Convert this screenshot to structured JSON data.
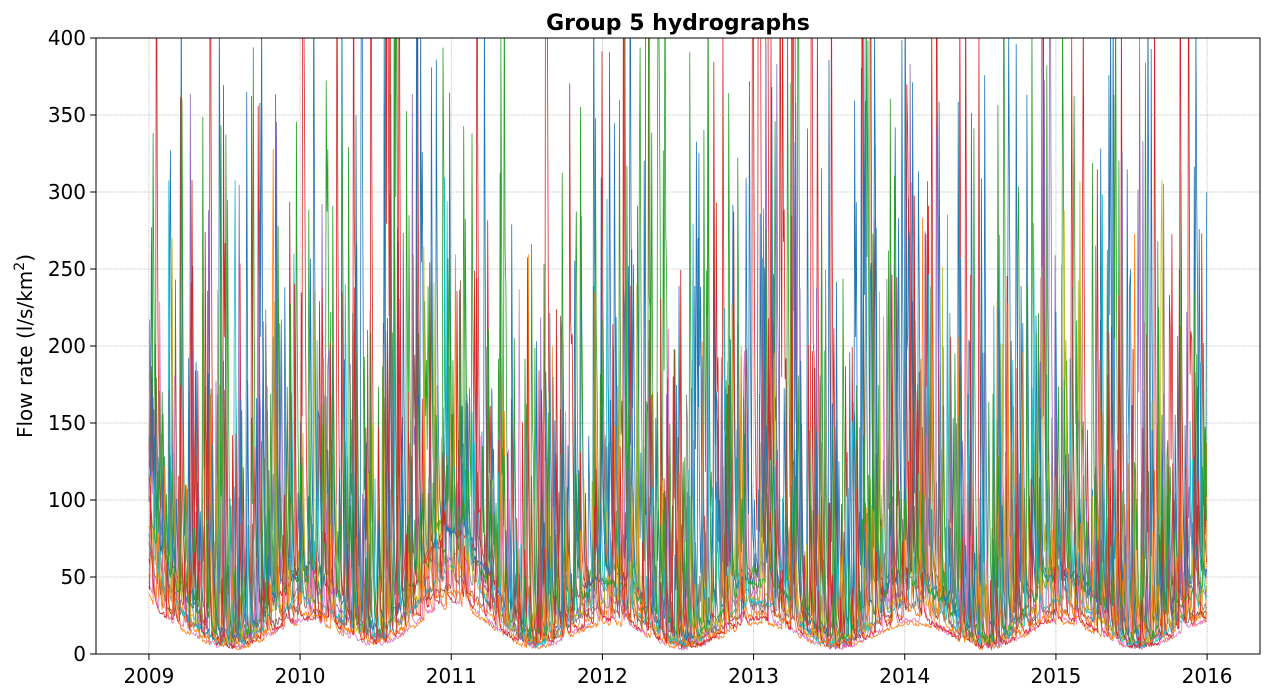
{
  "chart_data": {
    "type": "line",
    "title": "Group 5 hydrographs",
    "xlabel": "",
    "ylabel": "Flow rate (l/s/km²)",
    "ylabel_main": "Flow rate (l/s/km",
    "ylabel_sup": "2",
    "ylabel_end": ")",
    "xlim": [
      2008.65,
      2016.35
    ],
    "ylim": [
      0,
      400
    ],
    "x_ticks": [
      2009,
      2010,
      2011,
      2012,
      2013,
      2014,
      2015,
      2016
    ],
    "x_tick_labels": [
      "2009",
      "2010",
      "2011",
      "2012",
      "2013",
      "2014",
      "2015",
      "2016"
    ],
    "y_ticks": [
      0,
      50,
      100,
      150,
      200,
      250,
      300,
      350,
      400
    ],
    "y_tick_labels": [
      "0",
      "50",
      "100",
      "150",
      "200",
      "250",
      "300",
      "350",
      "400"
    ],
    "grid": true,
    "legend": "none",
    "data_start": 2009.0,
    "data_end": 2016.0,
    "line_width": 0.8,
    "series": [
      {
        "color": "#1f77b4",
        "base": 28,
        "seasonal_amp": 22,
        "baseflow_start": 70,
        "peak_scale": 90,
        "peak_rate": 26,
        "seed": 11
      },
      {
        "color": "#ff7f0e",
        "base": 12,
        "seasonal_amp": 8,
        "baseflow_start": 20,
        "peak_scale": 45,
        "peak_rate": 20,
        "seed": 23
      },
      {
        "color": "#2ca02c",
        "base": 36,
        "seasonal_amp": 20,
        "baseflow_start": 85,
        "peak_scale": 100,
        "peak_rate": 26,
        "seed": 37
      },
      {
        "color": "#d62728",
        "base": 30,
        "seasonal_amp": 24,
        "baseflow_start": 80,
        "peak_scale": 140,
        "peak_rate": 24,
        "seed": 41
      },
      {
        "color": "#9467bd",
        "base": 24,
        "seasonal_amp": 18,
        "baseflow_start": 60,
        "peak_scale": 80,
        "peak_rate": 20,
        "seed": 53
      },
      {
        "color": "#8c564b",
        "base": 18,
        "seasonal_amp": 10,
        "baseflow_start": 35,
        "peak_scale": 50,
        "peak_rate": 16,
        "seed": 67
      },
      {
        "color": "#e377c2",
        "base": 13,
        "seasonal_amp": 9,
        "baseflow_start": 25,
        "peak_scale": 50,
        "peak_rate": 16,
        "seed": 71
      },
      {
        "color": "#7f7f7f",
        "base": 20,
        "seasonal_amp": 12,
        "baseflow_start": 40,
        "peak_scale": 55,
        "peak_rate": 16,
        "seed": 83
      },
      {
        "color": "#bcbd22",
        "base": 22,
        "seasonal_amp": 14,
        "baseflow_start": 50,
        "peak_scale": 60,
        "peak_rate": 18,
        "seed": 97
      },
      {
        "color": "#17becf",
        "base": 20,
        "seasonal_amp": 14,
        "baseflow_start": 45,
        "peak_scale": 60,
        "peak_rate": 18,
        "seed": 101
      },
      {
        "color": "#1f77b4",
        "base": 32,
        "seasonal_amp": 20,
        "baseflow_start": 65,
        "peak_scale": 95,
        "peak_rate": 24,
        "seed": 113
      },
      {
        "color": "#ff7f0e",
        "base": 16,
        "seasonal_amp": 10,
        "baseflow_start": 25,
        "peak_scale": 55,
        "peak_rate": 18,
        "seed": 127
      },
      {
        "color": "#2ca02c",
        "base": 28,
        "seasonal_amp": 18,
        "baseflow_start": 60,
        "peak_scale": 90,
        "peak_rate": 22,
        "seed": 131
      },
      {
        "color": "#d62728",
        "base": 14,
        "seasonal_amp": 9,
        "baseflow_start": 20,
        "peak_scale": 60,
        "peak_rate": 16,
        "seed": 139
      }
    ]
  }
}
